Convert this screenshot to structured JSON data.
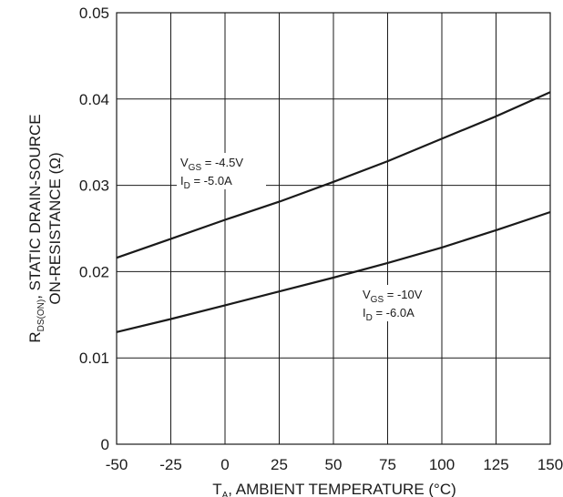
{
  "chart_data": {
    "type": "line",
    "xlabel": {
      "main": "T",
      "sub": "A",
      "rest": ", AMBIENT TEMPERATURE (°C)"
    },
    "ylabel": {
      "line1": {
        "main": "R",
        "sub": "DS(ON)",
        "rest": ", STATIC DRAIN-SOURCE"
      },
      "line2": "ON-RESISTANCE (Ω)"
    },
    "xlim": [
      -50,
      150
    ],
    "ylim": [
      0,
      0.05
    ],
    "x_ticks": [
      "-50",
      "-25",
      "0",
      "25",
      "50",
      "75",
      "100",
      "125",
      "150"
    ],
    "y_ticks": [
      "0",
      "0.01",
      "0.02",
      "0.03",
      "0.04",
      "0.05"
    ],
    "grid": true,
    "series": [
      {
        "x": [
          -50,
          -25,
          0,
          25,
          50,
          75,
          100,
          125,
          150
        ],
        "y": [
          0.0216,
          0.0238,
          0.026,
          0.0281,
          0.0304,
          0.0328,
          0.0354,
          0.038,
          0.0408
        ],
        "labels": [
          {
            "main": "V",
            "sub": "GS",
            "rest": " = -4.5V"
          },
          {
            "main": "I",
            "sub": "D",
            "rest": " = -5.0A"
          }
        ]
      },
      {
        "x": [
          -50,
          -25,
          0,
          25,
          50,
          75,
          100,
          125,
          150
        ],
        "y": [
          0.013,
          0.0145,
          0.0161,
          0.0177,
          0.0193,
          0.021,
          0.0228,
          0.0248,
          0.0269
        ],
        "labels": [
          {
            "main": "V",
            "sub": "GS",
            "rest": " = -10V"
          },
          {
            "main": "I",
            "sub": "D",
            "rest": " = -6.0A"
          }
        ]
      }
    ]
  }
}
